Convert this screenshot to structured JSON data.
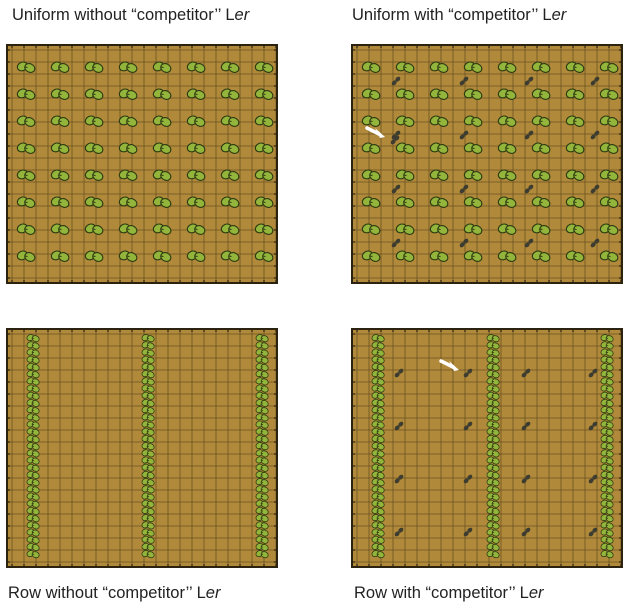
{
  "colors": {
    "soil": "#b1893a",
    "grid": "#5f4a20",
    "border": "#2b2210",
    "plant_leaf": "#93b53c",
    "plant_outline": "#2b3a10",
    "competitor": "#3c3c30",
    "arrow": "#ffffff"
  },
  "icons": {
    "plant": "seedling-icon",
    "competitor": "competitor-seedling-icon",
    "marker": "white-arrow-icon"
  },
  "panels": [
    {
      "id": "uniform-without",
      "caption_prefix": "Uniform without “competitor’’ L",
      "caption_italic": "er",
      "layout": "uniform",
      "competitor": false,
      "arrow": false
    },
    {
      "id": "uniform-with",
      "caption_prefix": "Uniform with “competitor’’ L",
      "caption_italic": "er",
      "layout": "uniform",
      "competitor": true,
      "arrow": true
    },
    {
      "id": "row-without",
      "caption_prefix": "Row without “competitor’’ L",
      "caption_italic": "er",
      "layout": "row",
      "competitor": false,
      "arrow": false
    },
    {
      "id": "row-with",
      "caption_prefix": "Row with “competitor’’ L",
      "caption_italic": "er",
      "layout": "row",
      "competitor": true,
      "arrow": true
    }
  ]
}
